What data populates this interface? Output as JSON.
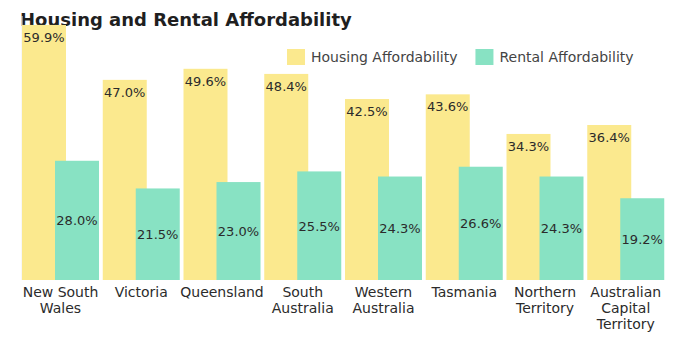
{
  "chart_data": {
    "type": "bar",
    "title": "Housing and Rental Affordability",
    "categories": [
      "New South Wales",
      "Victoria",
      "Queensland",
      "South Australia",
      "Western Australia",
      "Tasmania",
      "Northern Territory",
      "Australian Capital Territory"
    ],
    "series": [
      {
        "name": "Housing Affordability",
        "color": "#fbe98e",
        "values": [
          59.9,
          47.0,
          49.6,
          48.4,
          42.5,
          43.6,
          34.3,
          36.4
        ],
        "value_labels": [
          "59.9%",
          "47.0%",
          "49.6%",
          "48.4%",
          "42.5%",
          "43.6%",
          "34.3%",
          "36.4%"
        ]
      },
      {
        "name": "Rental Affordability",
        "color": "#88e2c3",
        "values": [
          28.0,
          21.5,
          23.0,
          25.5,
          24.3,
          26.6,
          24.3,
          19.2
        ],
        "value_labels": [
          "28.0%",
          "21.5%",
          "23.0%",
          "25.5%",
          "24.3%",
          "26.6%",
          "24.3%",
          "19.2%"
        ]
      }
    ],
    "ylim": [
      0,
      62
    ],
    "data_labels": true,
    "tick_labels": "x",
    "legend": "top-right",
    "grid": false
  }
}
